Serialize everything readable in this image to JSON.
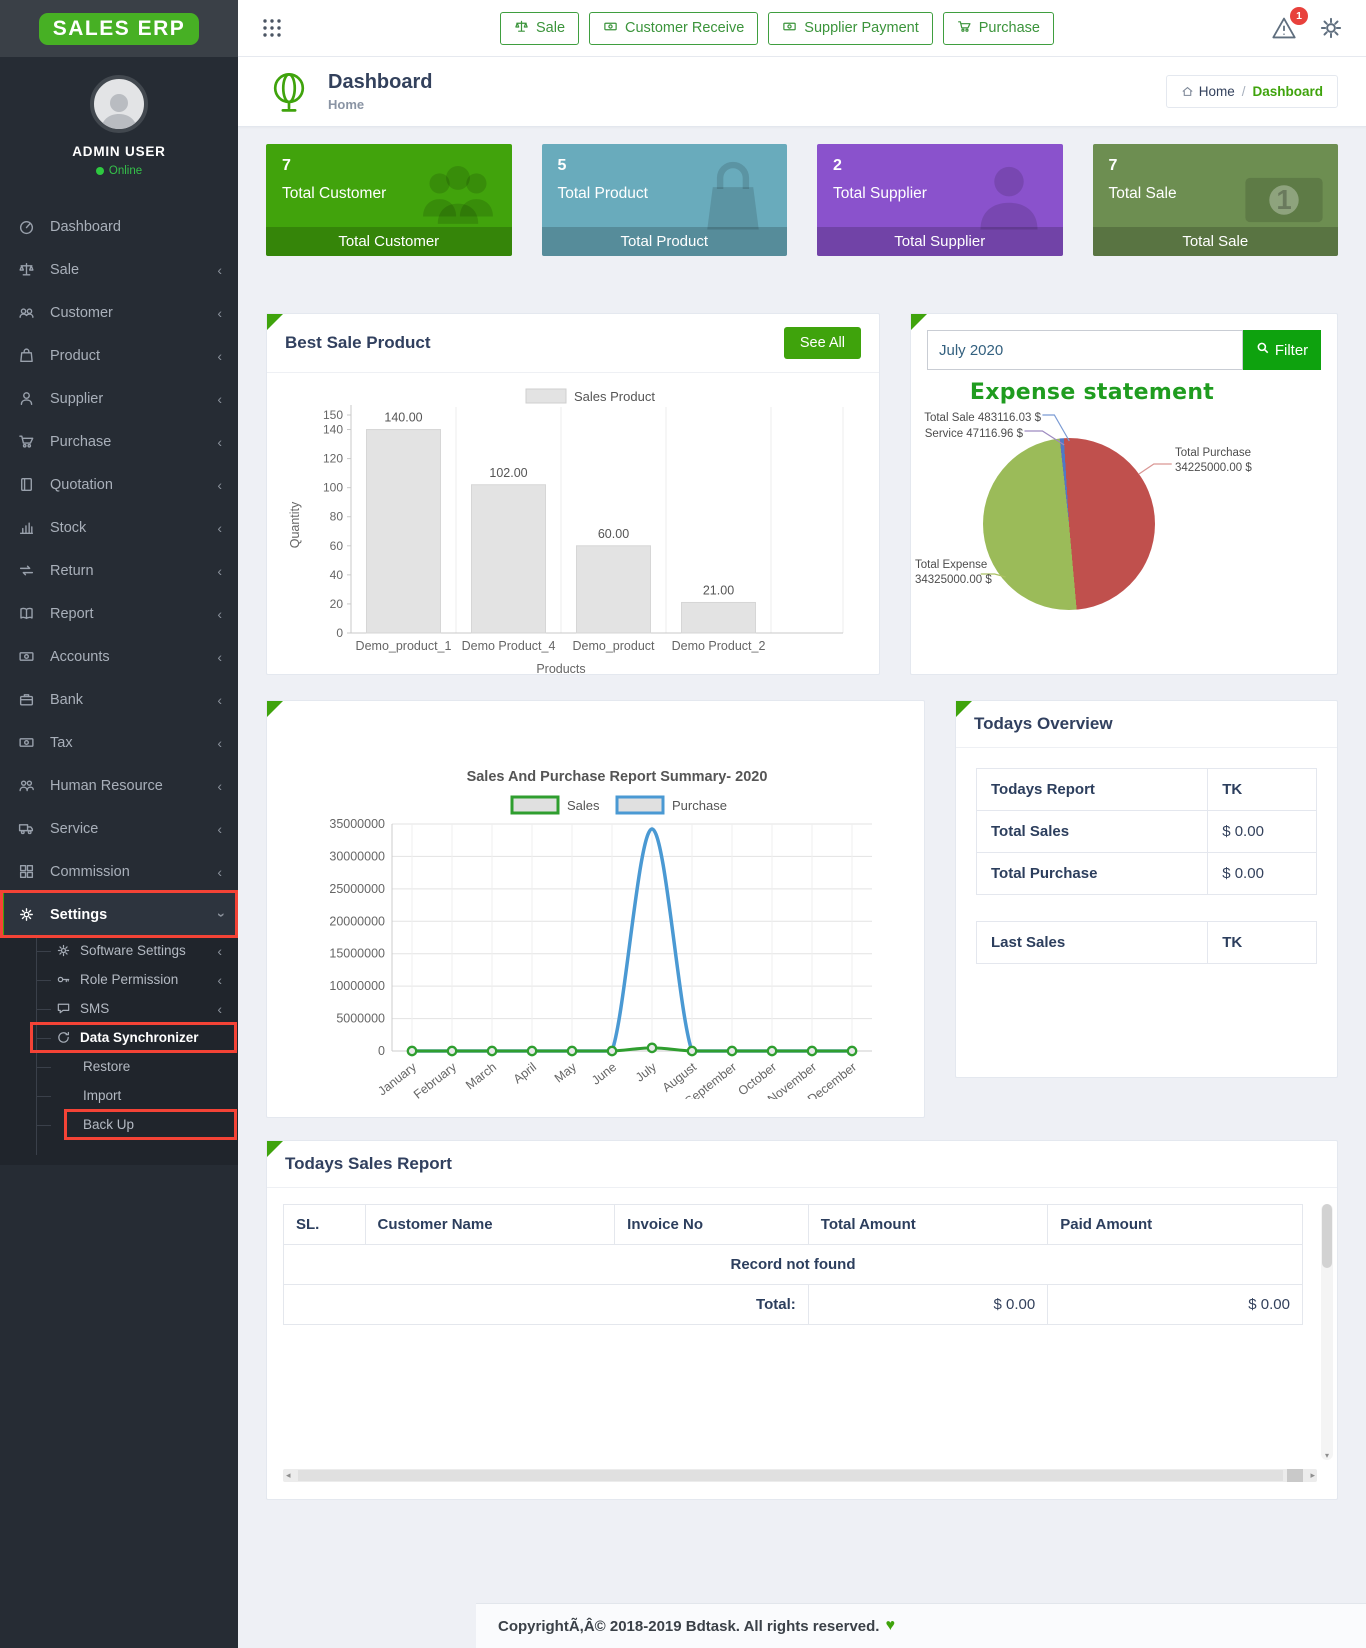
{
  "app": {
    "logo": "SALES ERP",
    "footer_text": "CopyrightÃ,Â© 2018-2019 Bdtask. All rights reserved.",
    "heart": "♥"
  },
  "topbar": {
    "badge": "1",
    "buttons": [
      {
        "label": "Sale",
        "icon": "scales-icon"
      },
      {
        "label": "Customer Receive",
        "icon": "money-icon"
      },
      {
        "label": "Supplier Payment",
        "icon": "money-icon"
      },
      {
        "label": "Purchase",
        "icon": "cart-icon"
      }
    ]
  },
  "sidebar": {
    "user": "ADMIN USER",
    "status": "Online",
    "items": [
      {
        "label": "Dashboard",
        "icon": "dashboard-icon",
        "chevron": false
      },
      {
        "label": "Sale",
        "icon": "scales-icon",
        "chevron": true
      },
      {
        "label": "Customer",
        "icon": "handshake-icon",
        "chevron": true
      },
      {
        "label": "Product",
        "icon": "bag-icon",
        "chevron": true
      },
      {
        "label": "Supplier",
        "icon": "user-icon",
        "chevron": true
      },
      {
        "label": "Purchase",
        "icon": "cart-icon",
        "chevron": true
      },
      {
        "label": "Quotation",
        "icon": "book-icon",
        "chevron": true
      },
      {
        "label": "Stock",
        "icon": "bar-chart-icon",
        "chevron": true
      },
      {
        "label": "Return",
        "icon": "return-icon",
        "chevron": true
      },
      {
        "label": "Report",
        "icon": "open-book-icon",
        "chevron": true
      },
      {
        "label": "Accounts",
        "icon": "money-icon",
        "chevron": true
      },
      {
        "label": "Bank",
        "icon": "briefcase-icon",
        "chevron": true
      },
      {
        "label": "Tax",
        "icon": "money-icon",
        "chevron": true
      },
      {
        "label": "Human Resource",
        "icon": "users-icon",
        "chevron": true
      },
      {
        "label": "Service",
        "icon": "truck-icon",
        "chevron": true
      },
      {
        "label": "Commission",
        "icon": "grid-icon",
        "chevron": true
      },
      {
        "label": "Settings",
        "icon": "gear-icon",
        "chevron": "down",
        "active": true,
        "annotated": true
      }
    ],
    "settings_children": [
      {
        "label": "Software Settings",
        "icon": "gear-icon",
        "chevron": true
      },
      {
        "label": "Role Permission",
        "icon": "key-icon",
        "chevron": true
      },
      {
        "label": "SMS",
        "icon": "chat-icon",
        "chevron": true
      },
      {
        "label": "Data Synchronizer",
        "icon": "sync-icon",
        "active": true,
        "annotated": true
      },
      {
        "label": "Restore"
      },
      {
        "label": "Import"
      },
      {
        "label": "Back Up",
        "annotated": true
      }
    ]
  },
  "page": {
    "title": "Dashboard",
    "subtitle": "Home",
    "breadcrumb": {
      "home": "Home",
      "sep": "/",
      "current": "Dashboard"
    }
  },
  "cards": [
    {
      "value": "7",
      "label": "Total Customer",
      "footer": "Total Customer",
      "color": "#41a30c",
      "icon": "users-fill-icon"
    },
    {
      "value": "5",
      "label": "Total Product",
      "footer": "Total Product",
      "color": "#69abbc",
      "icon": "bag-fill-icon"
    },
    {
      "value": "2",
      "label": "Total Supplier",
      "footer": "Total Supplier",
      "color": "#8a52cc",
      "icon": "user-fill-icon"
    },
    {
      "value": "7",
      "label": "Total Sale",
      "footer": "Total Sale",
      "color": "#6d8e51",
      "icon": "banknote-fill-icon"
    }
  ],
  "panels": {
    "best_sale": {
      "title": "Best Sale Product",
      "see_all": "See All"
    },
    "expense": {
      "filter_value": "July 2020",
      "filter_label": "Filter"
    },
    "overview": {
      "title": "Todays Overview",
      "t1": {
        "h1": "Todays Report",
        "h2": "TK",
        "r1c1": "Total Sales",
        "r1c2": "$ 0.00",
        "r2c1": "Total Purchase",
        "r2c2": "$ 0.00"
      },
      "t2": {
        "h1": "Last Sales",
        "h2": "TK"
      }
    },
    "sales_report": {
      "title": "Todays Sales Report",
      "headers": [
        "SL.",
        "Customer Name",
        "Invoice No",
        "Total Amount",
        "Paid Amount"
      ],
      "empty": "Record not found",
      "total_label": "Total:",
      "total_amount": "$ 0.00",
      "paid_amount": "$ 0.00"
    }
  },
  "chart_data": [
    {
      "type": "bar",
      "legend": "Sales Product",
      "categories": [
        "Demo_product_1",
        "Demo Product_4",
        "Demo_product",
        "Demo Product_2"
      ],
      "values": [
        140,
        102,
        60,
        21
      ],
      "value_labels": [
        "140.00",
        "102.00",
        "60.00",
        "21.00"
      ],
      "xlabel": "Products",
      "ylabel": "Quantity",
      "ylim": [
        0,
        150
      ],
      "yticks": [
        150,
        140,
        120,
        100,
        80,
        60,
        40,
        20,
        0
      ],
      "bar_color": "#e3e3e3"
    },
    {
      "type": "pie",
      "title": "Expense statement",
      "slices": [
        {
          "name": "Total Sale",
          "value": 483116.03,
          "display": "Total Sale 483116.03 $",
          "color": "#4f7ac7"
        },
        {
          "name": "Total Purchase",
          "value": 34225000.0,
          "display": "Total Purchase 34225000.00 $",
          "color": "#c0504d"
        },
        {
          "name": "Total Expense",
          "value": 34325000.0,
          "display": "Total Expense 34325000.00 $",
          "color": "#9bbb59"
        },
        {
          "name": "Service",
          "value": 47116.96,
          "display": "Service 47116.96 $",
          "color": "#8064a2"
        }
      ]
    },
    {
      "type": "line",
      "title": "Sales And Purchase Report Summary- 2020",
      "x": [
        "January",
        "February",
        "March",
        "April",
        "May",
        "June",
        "July",
        "August",
        "September",
        "October",
        "November",
        "December"
      ],
      "ylim": [
        0,
        35000000
      ],
      "yticks": [
        0,
        5000000,
        10000000,
        15000000,
        20000000,
        25000000,
        30000000,
        35000000
      ],
      "legend_position": "top",
      "series": [
        {
          "name": "Sales",
          "color": "#2f9e2f",
          "values": [
            0,
            0,
            0,
            0,
            0,
            0,
            483116.03,
            0,
            0,
            0,
            0,
            0
          ]
        },
        {
          "name": "Purchase",
          "color": "#4a99d3",
          "values": [
            0,
            0,
            0,
            0,
            0,
            0,
            34225000,
            0,
            0,
            0,
            0,
            0
          ]
        }
      ]
    }
  ]
}
